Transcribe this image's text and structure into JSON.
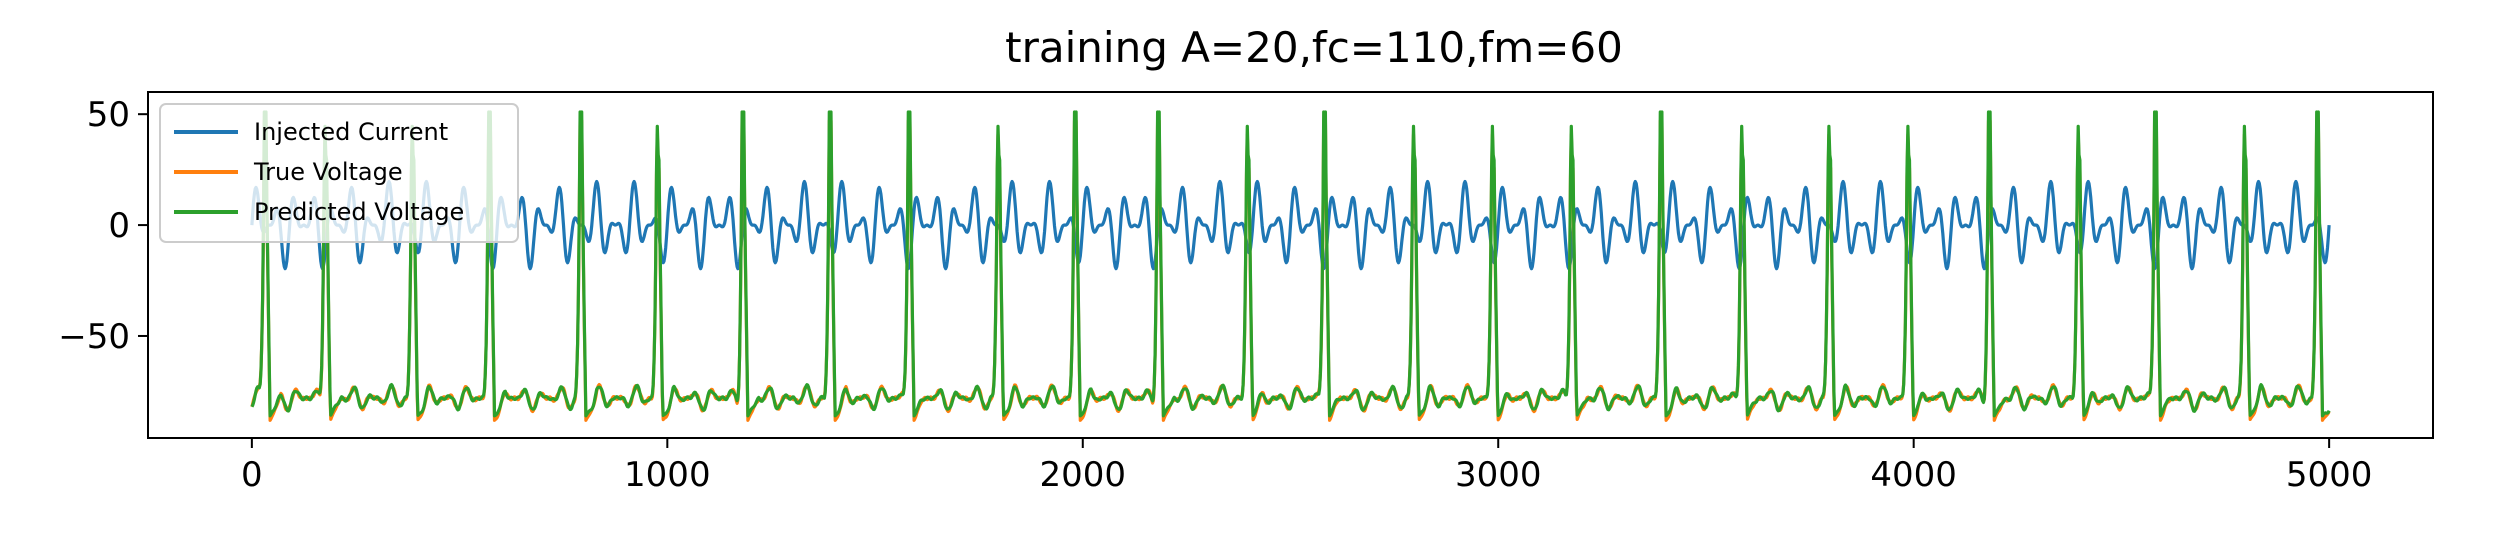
{
  "chart_data": {
    "type": "line",
    "title": "training A=20,fc=110,fm=60",
    "xlabel": "",
    "ylabel": "",
    "xlim": [
      -250,
      5250
    ],
    "ylim": [
      -96,
      60
    ],
    "x_ticks": [
      0,
      1000,
      2000,
      3000,
      4000,
      5000
    ],
    "x_tick_labels": [
      "0",
      "1000",
      "2000",
      "3000",
      "4000",
      "5000"
    ],
    "y_ticks": [
      50,
      0,
      -50
    ],
    "y_tick_labels": [
      "50",
      "0",
      "−50"
    ],
    "grid": false,
    "legend_position": "upper-left",
    "legend": [
      "Injected Current",
      "True Voltage",
      "Predicted Voltage"
    ],
    "series": [
      {
        "name": "Injected Current",
        "color": "#1f77b4",
        "generator": "A*(1+0.5*cos(2*pi*fm*t))*sin(2*pi*fc*t), sampled 5000 steps",
        "A": 20,
        "fc": 110,
        "fm": 60,
        "x_range": [
          0,
          5000
        ],
        "y_range_approx": [
          -20,
          20
        ]
      },
      {
        "name": "True Voltage",
        "color": "#ff7f0e",
        "x_range": [
          0,
          5000
        ],
        "spike_times_approx": [
          30,
          175,
          385,
          570,
          790,
          975,
          1180,
          1390,
          1580,
          1795,
          1980,
          2180,
          2395,
          2580,
          2795,
          2985,
          3175,
          3390,
          3585,
          3795,
          3985,
          4180,
          4395,
          4580,
          4795,
          4970
        ],
        "spike_peak_approx": 47,
        "rest_approx": -78,
        "trough_approx": -88
      },
      {
        "name": "Predicted Voltage",
        "color": "#2ca02c",
        "x_range": [
          0,
          5000
        ],
        "spike_times_approx": [
          30,
          175,
          385,
          570,
          790,
          975,
          1180,
          1390,
          1580,
          1795,
          1980,
          2180,
          2395,
          2580,
          2795,
          2985,
          3175,
          3390,
          3585,
          3795,
          3985,
          4180,
          4395,
          4580,
          4795,
          4970
        ],
        "spike_peak_approx": 51,
        "rest_approx": -78,
        "trough_approx": -86
      }
    ]
  }
}
